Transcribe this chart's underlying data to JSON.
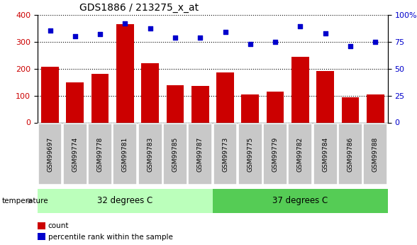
{
  "title": "GDS1886 / 213275_x_at",
  "samples": [
    "GSM99697",
    "GSM99774",
    "GSM99778",
    "GSM99781",
    "GSM99783",
    "GSM99785",
    "GSM99787",
    "GSM99773",
    "GSM99775",
    "GSM99779",
    "GSM99782",
    "GSM99784",
    "GSM99786",
    "GSM99788"
  ],
  "counts": [
    207,
    148,
    180,
    365,
    220,
    138,
    136,
    187,
    103,
    115,
    243,
    190,
    93,
    105
  ],
  "percentile_ranks": [
    85,
    80,
    82,
    92,
    87,
    79,
    79,
    84,
    73,
    75,
    89,
    83,
    71,
    75
  ],
  "group1_label": "32 degrees C",
  "group2_label": "37 degrees C",
  "group1_count": 7,
  "group2_count": 7,
  "bar_color": "#cc0000",
  "dot_color": "#0000cc",
  "group1_color": "#bbffbb",
  "group2_color": "#55cc55",
  "tick_label_bg": "#c8c8c8",
  "ylim_left": [
    0,
    400
  ],
  "ylim_right": [
    0,
    100
  ],
  "yticks_left": [
    0,
    100,
    200,
    300,
    400
  ],
  "yticks_right": [
    0,
    25,
    50,
    75,
    100
  ],
  "legend_count": "count",
  "legend_pct": "percentile rank within the sample",
  "temperature_label": "temperature"
}
